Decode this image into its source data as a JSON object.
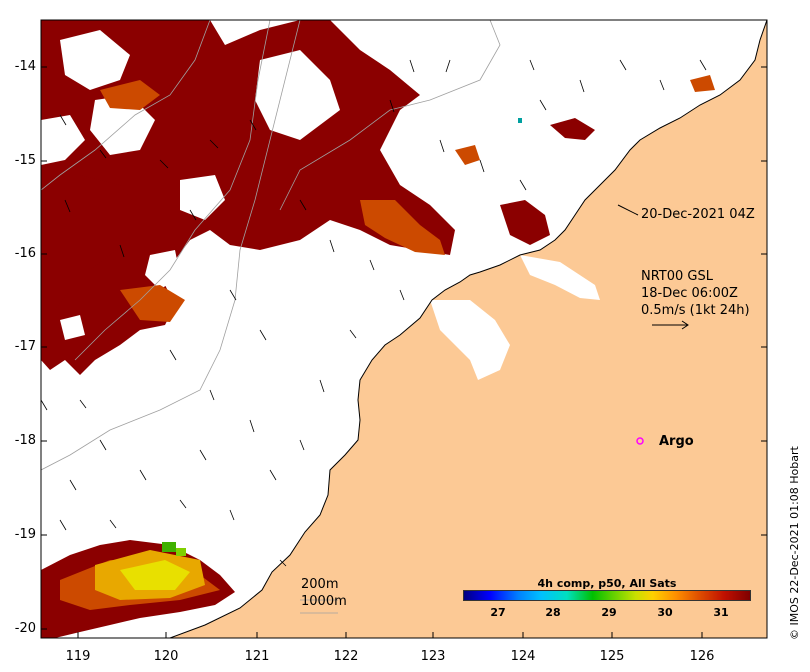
{
  "map": {
    "x_ticks": [
      "119",
      "120",
      "121",
      "122",
      "123",
      "124",
      "125",
      "126"
    ],
    "y_ticks": [
      "-14",
      "-15",
      "-16",
      "-17",
      "-18",
      "-19",
      "-20"
    ],
    "timestamp_label": "20-Dec-2021 04Z",
    "current_product": "NRT00 GSL",
    "current_time": "18-Dec 06:00Z",
    "vector_scale": "0.5m/s (1kt 24h)",
    "argo_label": "Argo",
    "contour_200": "200m",
    "contour_1000": "1000m",
    "credit": "© IMOS 22-Dec-2021 01:08 Hobart"
  },
  "colorbar": {
    "title": "4h comp, p50, All Sats",
    "ticks": [
      "27",
      "28",
      "29",
      "30",
      "31"
    ]
  },
  "colors": {
    "land": "#fcc995",
    "sst_hot": "#8b0000",
    "sst_warm": "#cc4a00",
    "argo": "#ff00ff"
  }
}
